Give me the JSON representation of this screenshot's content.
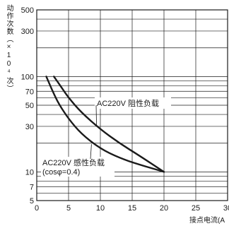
{
  "chart_data": {
    "type": "line",
    "ylabel": "动作次数（×10⁴次）",
    "xlabel": "接点电流(A",
    "x_ticks": [
      0,
      5,
      10,
      15,
      20,
      25,
      30
    ],
    "y_ticks": [
      5,
      7,
      10,
      30,
      50,
      70,
      100,
      300,
      500
    ],
    "xlim": [
      0,
      30
    ],
    "ylim": [
      5,
      500
    ],
    "y_scale": "log",
    "grid": true,
    "series": [
      {
        "name": "AC220V 阻性负载",
        "x": [
          2.7,
          4,
          5,
          7,
          10,
          13,
          16,
          20
        ],
        "y": [
          100,
          75,
          60,
          42,
          28,
          20,
          15,
          10
        ]
      },
      {
        "name": "AC220V 感性负载 (cosφ=0.4)",
        "x": [
          1.5,
          2.5,
          3.5,
          5,
          7,
          10,
          13,
          16,
          20
        ],
        "y": [
          100,
          70,
          51,
          36,
          25,
          17.5,
          14,
          12,
          10
        ]
      }
    ],
    "annotations": [
      {
        "text": "AC220V 阻性负载"
      },
      {
        "text": "AC220V 感性负载"
      },
      {
        "text": "(cosφ=0.4)"
      }
    ]
  }
}
